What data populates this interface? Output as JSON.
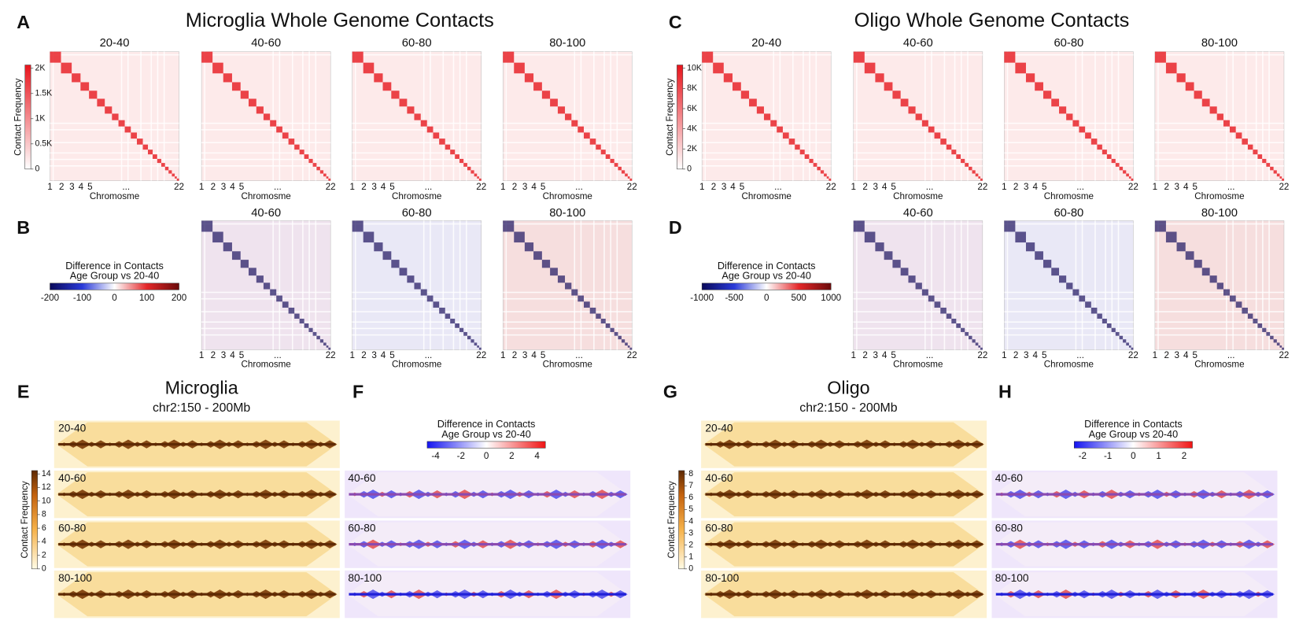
{
  "A": {
    "letter": "A",
    "title": "Microglia Whole Genome Contacts",
    "maps": [
      "20-40",
      "40-60",
      "60-80",
      "80-100"
    ],
    "colorbar_label": "Contact Frequency",
    "colorbar_ticks": [
      "2K",
      "1.5K",
      "1K",
      "0.5K",
      0
    ],
    "x_ticks": [
      1,
      2,
      3,
      4,
      5,
      "...",
      22
    ],
    "x_label": "Chromosme"
  },
  "B": {
    "letter": "B",
    "maps": [
      "40-60",
      "60-80",
      "80-100"
    ],
    "colorbar_title": [
      "Difference in Contacts",
      "Age Group vs 20-40"
    ],
    "colorbar_ticks": [
      -200,
      -100,
      0,
      100,
      200
    ],
    "x_ticks": [
      1,
      2,
      3,
      4,
      5,
      "...",
      22
    ],
    "x_label": "Chromosme"
  },
  "C": {
    "letter": "C",
    "title": "Oligo Whole Genome Contacts",
    "maps": [
      "20-40",
      "40-60",
      "60-80",
      "80-100"
    ],
    "colorbar_label": "Contact Frequency",
    "colorbar_ticks": [
      "10K",
      "8K",
      "6K",
      "4K",
      "2K",
      0
    ],
    "x_ticks": [
      1,
      2,
      3,
      4,
      5,
      "...",
      22
    ],
    "x_label": "Chromosme"
  },
  "D": {
    "letter": "D",
    "maps": [
      "40-60",
      "60-80",
      "80-100"
    ],
    "colorbar_title": [
      "Difference in Contacts",
      "Age Group vs 20-40"
    ],
    "colorbar_ticks": [
      -1000,
      -500,
      0,
      500,
      1000
    ],
    "x_ticks": [
      1,
      2,
      3,
      4,
      5,
      "...",
      22
    ],
    "x_label": "Chromosme"
  },
  "E": {
    "letter": "E",
    "title": "Microglia",
    "subtitle": "chr2:150 - 200Mb",
    "tracks": [
      "20-40",
      "40-60",
      "60-80",
      "80-100"
    ],
    "colorbar_label": "Contact Frequency",
    "colorbar_ticks": [
      14,
      12,
      10,
      8,
      6,
      4,
      2,
      0
    ]
  },
  "F": {
    "letter": "F",
    "colorbar_title": [
      "Difference in Contacts",
      "Age Group vs 20-40"
    ],
    "colorbar_ticks": [
      -4,
      -2,
      0,
      2,
      4
    ],
    "tracks": [
      "40-60",
      "60-80",
      "80-100"
    ]
  },
  "G": {
    "letter": "G",
    "title": "Oligo",
    "subtitle": "chr2:150 - 200Mb",
    "tracks": [
      "20-40",
      "40-60",
      "60-80",
      "80-100"
    ],
    "colorbar_label": "Contact Frequency",
    "colorbar_ticks": [
      8,
      7,
      6,
      5,
      4,
      3,
      2,
      1,
      0
    ]
  },
  "H": {
    "letter": "H",
    "colorbar_title": [
      "Difference in Contacts",
      "Age Group vs 20-40"
    ],
    "colorbar_ticks": [
      -2,
      -1,
      0,
      1,
      2
    ],
    "tracks": [
      "40-60",
      "60-80",
      "80-100"
    ]
  }
}
